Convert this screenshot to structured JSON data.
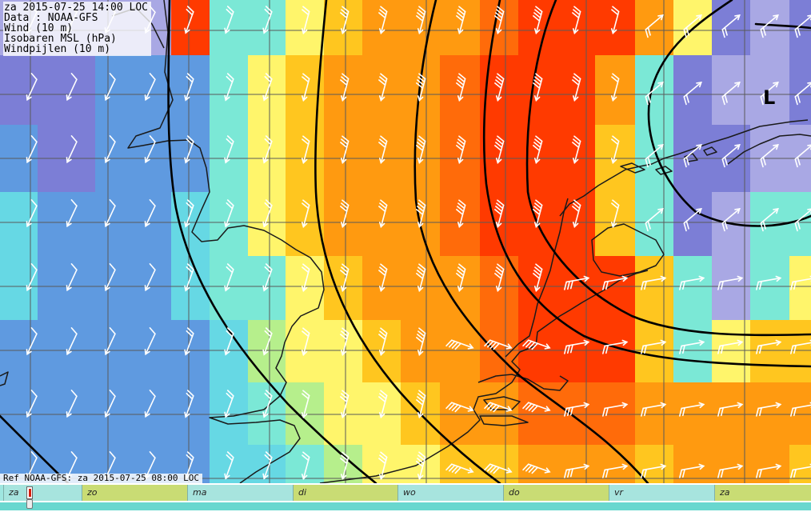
{
  "info": {
    "datetime": "za 2015-07-25 14:00 LOC",
    "source": "Data : NOAA-GFS",
    "wind": "Wind (10 m)",
    "isobars": "Isobaren MSL (hPa)",
    "arrows": "Windpijlen (10 m)"
  },
  "ref": "Ref NOAA-GFS: za 2015-07-25 08:00 LOC",
  "low_label": "L",
  "timeline": {
    "days": [
      "za",
      "zo",
      "ma",
      "di",
      "wo",
      "do",
      "vr",
      "za"
    ]
  },
  "colors": {
    "violet": "#7c7ed6",
    "lavender": "#a9a8e4",
    "blue": "#5f9ae0",
    "cyan": "#66d8e4",
    "teal": "#7be8d6",
    "lightgreen": "#b6ef8c",
    "yellow": "#fff56b",
    "gold": "#ffc61f",
    "orange": "#ff9a10",
    "darkorange": "#ff6b0a",
    "red": "#ff3a00",
    "isobar": "#000000",
    "coast": "#1a1a1a",
    "wind_arrow": "#ffffff"
  }
}
